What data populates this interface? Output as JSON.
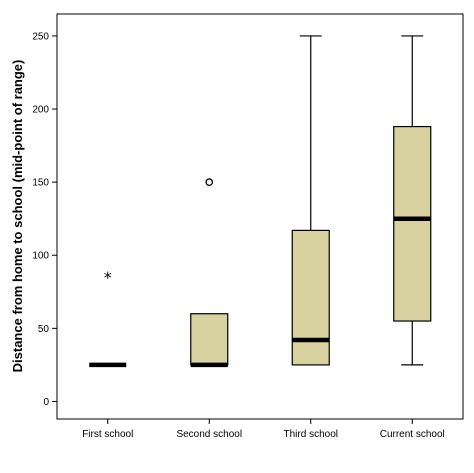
{
  "chart_data": {
    "type": "boxplot",
    "title": "",
    "xlabel": "",
    "ylabel": "Distance from home to school (mid-point of range)",
    "ylim": [
      -12,
      265
    ],
    "yticks": [
      0,
      50,
      100,
      150,
      200,
      250
    ],
    "grid": false,
    "categories": [
      "First school",
      "Second school",
      "Third school",
      "Current school"
    ],
    "boxes": [
      {
        "category": "First school",
        "min": 25,
        "q1": 25,
        "median": 25,
        "q3": 25,
        "max": 25,
        "outliers": [],
        "extremes": [
          85
        ]
      },
      {
        "category": "Second school",
        "min": 25,
        "q1": 25,
        "median": 25,
        "q3": 60,
        "max": 60,
        "outliers": [
          150
        ],
        "extremes": []
      },
      {
        "category": "Third school",
        "min": 25,
        "q1": 25,
        "median": 42,
        "q3": 117,
        "max": 250,
        "outliers": [],
        "extremes": []
      },
      {
        "category": "Current school",
        "min": 25,
        "q1": 55,
        "median": 125,
        "q3": 188,
        "max": 250,
        "outliers": [],
        "extremes": []
      }
    ],
    "colors": {
      "box_fill": "#d8d2a0",
      "line": "#000000",
      "background": "#ffffff"
    }
  }
}
